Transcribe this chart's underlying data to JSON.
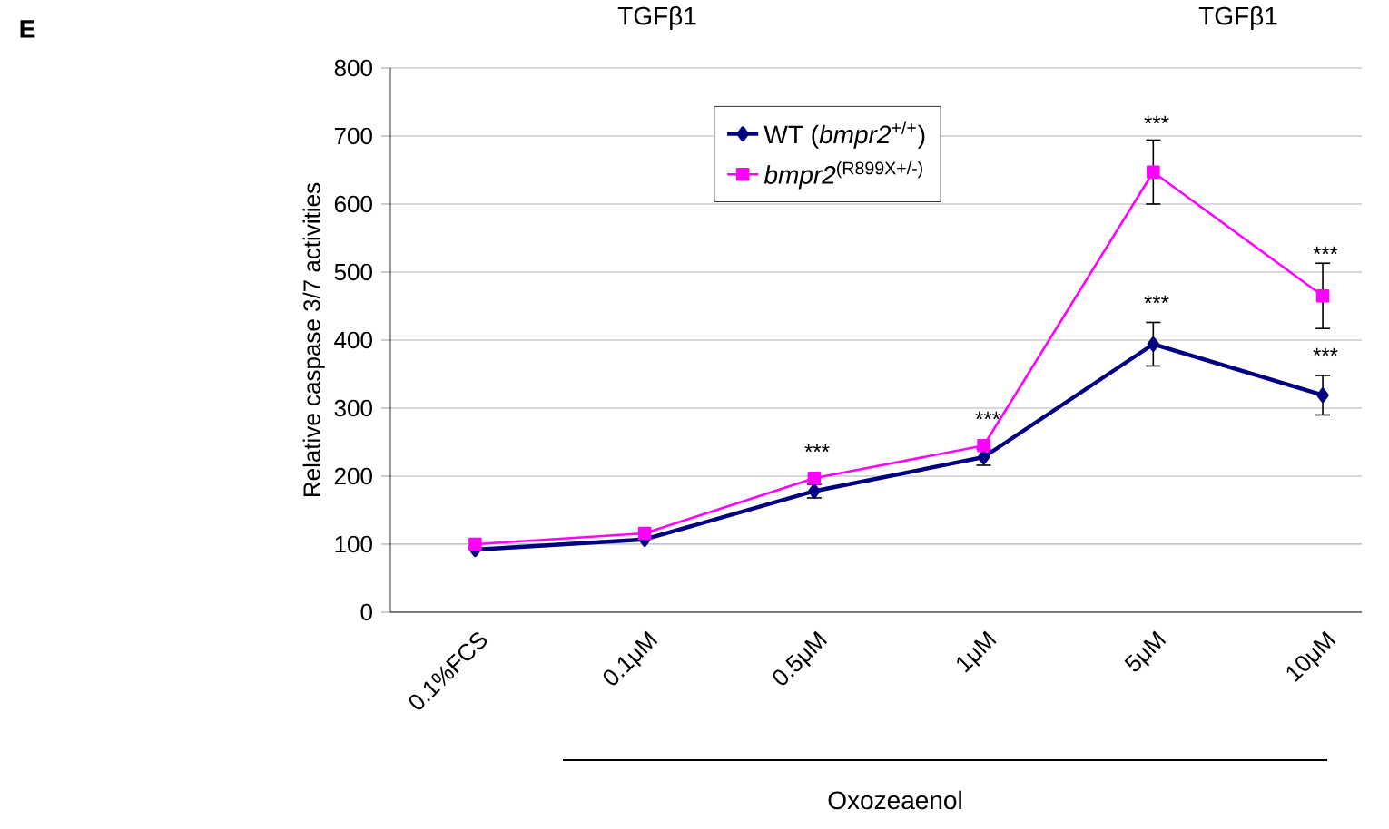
{
  "chart_data": {
    "type": "line",
    "ylabel": "Relative caspase 3/7 activities",
    "categories": [
      "0.1%FCS",
      "0.1μM",
      "0.5μM",
      "1μM",
      "5μM",
      "10μM"
    ],
    "series": [
      {
        "name": "WT (*bmpr2*$^{+/+}$)",
        "color": "#000080",
        "marker": "diamond",
        "values": [
          92,
          107,
          178,
          228,
          394,
          319
        ],
        "errors": [
          null,
          null,
          10,
          12,
          32,
          29
        ]
      },
      {
        "name": "*bmpr2*$^{(R899X+/-)}$",
        "color": "#ff00ff",
        "marker": "square",
        "values": [
          100,
          116,
          197,
          245,
          647,
          465
        ],
        "errors": [
          null,
          null,
          null,
          null,
          47,
          48
        ]
      }
    ],
    "ylim": [
      0,
      800
    ],
    "yticks": [
      0,
      100,
      200,
      300,
      400,
      500,
      600,
      700,
      800
    ],
    "grid": "y",
    "legend": "top",
    "line_style": "solid",
    "annotations": [
      "E",
      "TGFβ1",
      "TGFβ1",
      "Oxozeaenol",
      "***",
      "***",
      "***",
      "***",
      "***",
      "***"
    ]
  }
}
